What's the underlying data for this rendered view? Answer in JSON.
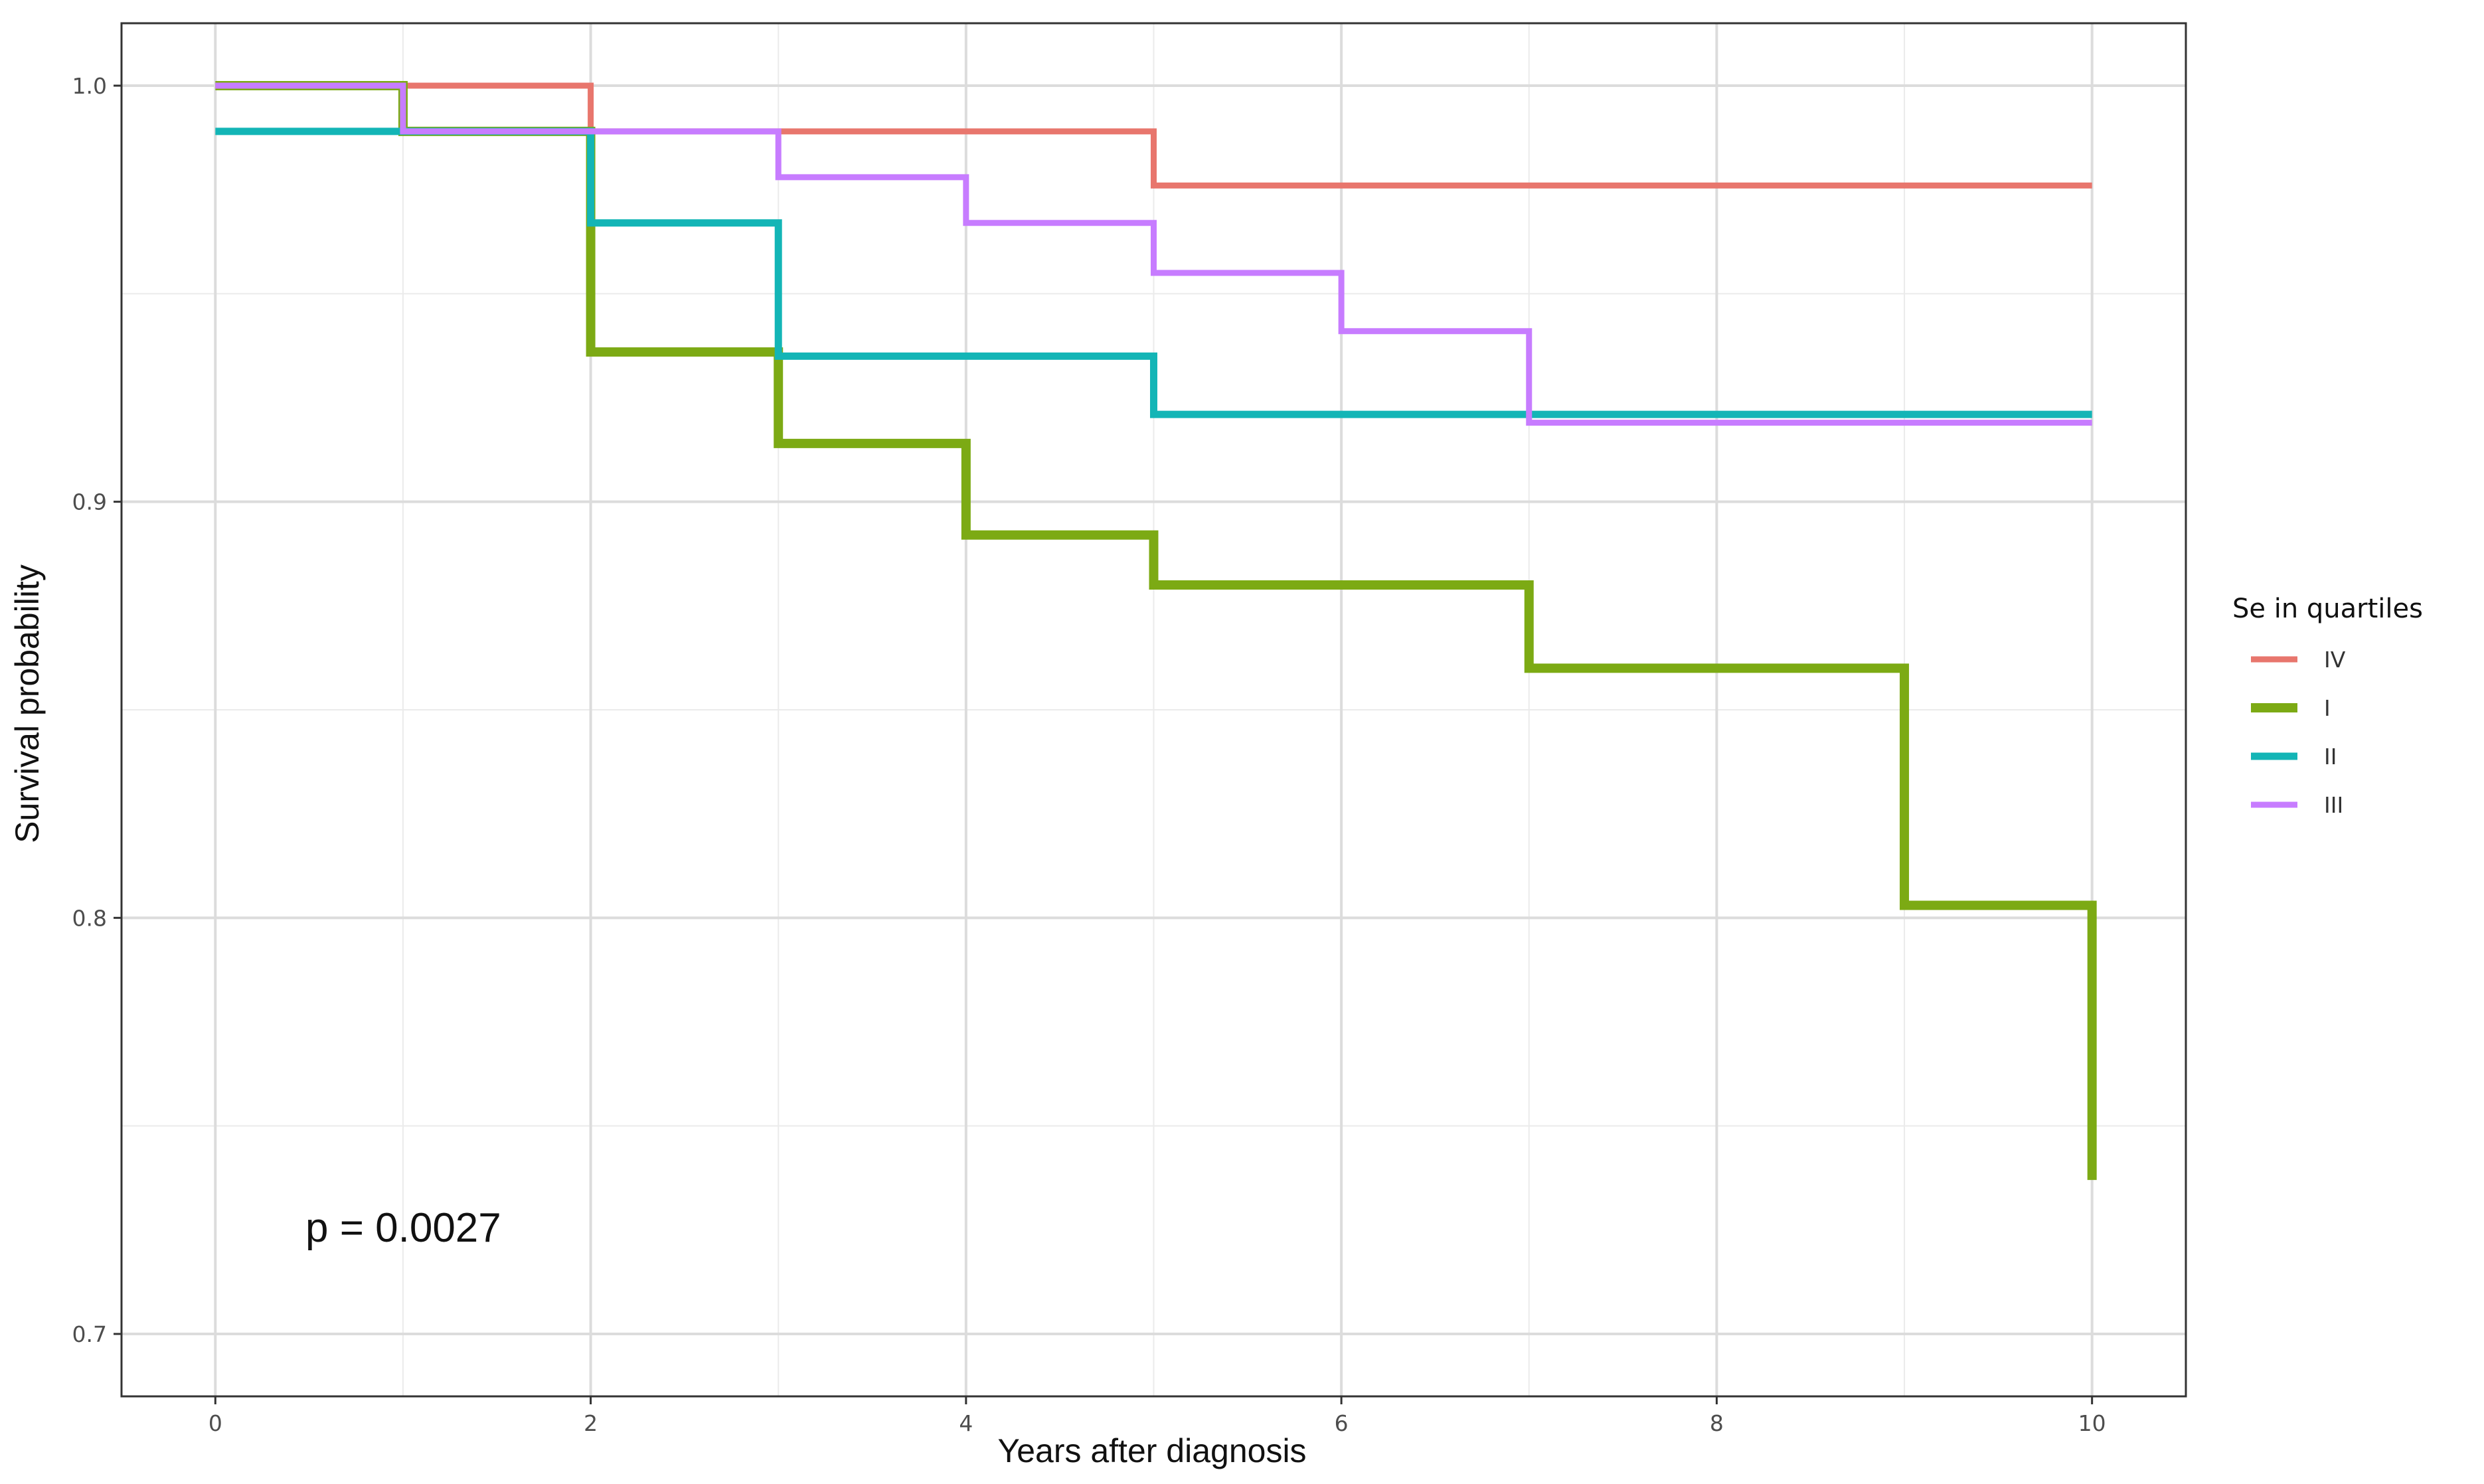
{
  "chart_data": {
    "type": "line",
    "step": true,
    "x_ticks": [
      0,
      2,
      4,
      6,
      8,
      10
    ],
    "x_tick_labels": [
      "0",
      "2",
      "4",
      "6",
      "8",
      "10"
    ],
    "y_ticks": [
      0.7,
      0.8,
      0.9,
      1.0
    ],
    "y_tick_labels": [
      "0.7",
      "0.8",
      "0.9",
      "1.0"
    ],
    "xlim": [
      -0.5,
      10.5
    ],
    "ylim": [
      0.685,
      1.015
    ],
    "xlabel": "Years after diagnosis",
    "ylabel": "Survival probability",
    "grid": true,
    "legend": {
      "title": "Se in quartiles",
      "position": "right"
    },
    "annotation": "p = 0.0027",
    "series": [
      {
        "name": "IV",
        "color": "#e8766d",
        "x": [
          0,
          2,
          5,
          10
        ],
        "y": [
          1.0,
          0.989,
          0.976,
          0.976
        ]
      },
      {
        "name": "I",
        "color": "#7caa14",
        "x": [
          0,
          1,
          2,
          3,
          4,
          5,
          7,
          9,
          10
        ],
        "y": [
          1.0,
          0.989,
          0.936,
          0.914,
          0.892,
          0.88,
          0.86,
          0.803,
          0.737
        ]
      },
      {
        "name": "II",
        "color": "#13b5b6",
        "x": [
          0,
          2,
          3,
          5,
          10
        ],
        "y": [
          0.989,
          0.967,
          0.935,
          0.921,
          0.921
        ]
      },
      {
        "name": "III",
        "color": "#c77cff",
        "x": [
          0,
          1,
          3,
          4,
          5,
          6,
          7,
          10
        ],
        "y": [
          1.0,
          0.989,
          0.978,
          0.967,
          0.955,
          0.941,
          0.919,
          0.919
        ]
      }
    ]
  }
}
